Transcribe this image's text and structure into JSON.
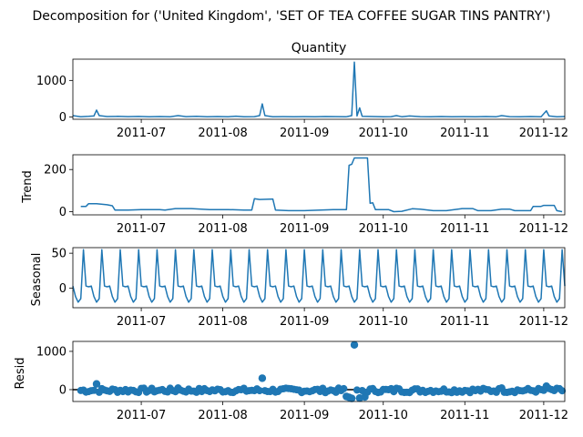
{
  "figure": {
    "suptitle": "Decomposition for ('United Kingdom', 'SET OF TEA COFFEE SUGAR TINS PANTRY')"
  },
  "colors": {
    "series": "#1f77b4",
    "axes": "#000000",
    "background": "#ffffff"
  },
  "chart_data": [
    {
      "type": "line",
      "title": "Quantity",
      "ylabel": "",
      "xlim": [
        "2011-06-05",
        "2011-12-09"
      ],
      "ylim": [
        -60,
        1580
      ],
      "yticks": [
        0,
        1000
      ],
      "xticks": [
        "2011-07",
        "2011-08",
        "2011-09",
        "2011-10",
        "2011-11",
        "2011-12"
      ],
      "series": [
        {
          "points": [
            [
              "2011-06-05",
              40
            ],
            [
              "2011-06-08",
              10
            ],
            [
              "2011-06-11",
              20
            ],
            [
              "2011-06-13",
              30
            ],
            [
              "2011-06-14",
              190
            ],
            [
              "2011-06-15",
              40
            ],
            [
              "2011-06-18",
              15
            ],
            [
              "2011-06-22",
              20
            ],
            [
              "2011-06-26",
              12
            ],
            [
              "2011-06-30",
              18
            ],
            [
              "2011-07-04",
              10
            ],
            [
              "2011-07-08",
              14
            ],
            [
              "2011-07-12",
              10
            ],
            [
              "2011-07-15",
              40
            ],
            [
              "2011-07-18",
              12
            ],
            [
              "2011-07-22",
              20
            ],
            [
              "2011-07-26",
              10
            ],
            [
              "2011-07-30",
              15
            ],
            [
              "2011-08-03",
              10
            ],
            [
              "2011-08-06",
              25
            ],
            [
              "2011-08-09",
              10
            ],
            [
              "2011-08-13",
              12
            ],
            [
              "2011-08-15",
              40
            ],
            [
              "2011-08-16",
              360
            ],
            [
              "2011-08-17",
              40
            ],
            [
              "2011-08-20",
              10
            ],
            [
              "2011-08-24",
              12
            ],
            [
              "2011-08-28",
              10
            ],
            [
              "2011-09-01",
              12
            ],
            [
              "2011-09-05",
              10
            ],
            [
              "2011-09-09",
              14
            ],
            [
              "2011-09-13",
              12
            ],
            [
              "2011-09-17",
              10
            ],
            [
              "2011-09-19",
              40
            ],
            [
              "2011-09-20",
              1500
            ],
            [
              "2011-09-21",
              30
            ],
            [
              "2011-09-22",
              250
            ],
            [
              "2011-09-23",
              20
            ],
            [
              "2011-09-27",
              15
            ],
            [
              "2011-10-01",
              10
            ],
            [
              "2011-10-04",
              12
            ],
            [
              "2011-10-06",
              40
            ],
            [
              "2011-10-08",
              10
            ],
            [
              "2011-10-11",
              30
            ],
            [
              "2011-10-15",
              12
            ],
            [
              "2011-10-19",
              10
            ],
            [
              "2011-10-23",
              14
            ],
            [
              "2011-10-27",
              10
            ],
            [
              "2011-11-01",
              12
            ],
            [
              "2011-11-05",
              10
            ],
            [
              "2011-11-09",
              14
            ],
            [
              "2011-11-13",
              10
            ],
            [
              "2011-11-15",
              40
            ],
            [
              "2011-11-18",
              12
            ],
            [
              "2011-11-22",
              10
            ],
            [
              "2011-11-26",
              14
            ],
            [
              "2011-11-30",
              10
            ],
            [
              "2011-12-02",
              170
            ],
            [
              "2011-12-03",
              30
            ],
            [
              "2011-12-06",
              10
            ],
            [
              "2011-12-09",
              15
            ]
          ]
        }
      ]
    },
    {
      "type": "line",
      "title": "",
      "ylabel": "Trend",
      "xlim": [
        "2011-06-05",
        "2011-12-09"
      ],
      "ylim": [
        -15,
        270
      ],
      "yticks": [
        0,
        200
      ],
      "xticks": [
        "2011-07",
        "2011-08",
        "2011-09",
        "2011-10",
        "2011-11",
        "2011-12"
      ],
      "series": [
        {
          "points": [
            [
              "2011-06-08",
              25
            ],
            [
              "2011-06-10",
              25
            ],
            [
              "2011-06-11",
              38
            ],
            [
              "2011-06-14",
              38
            ],
            [
              "2011-06-18",
              33
            ],
            [
              "2011-06-20",
              28
            ],
            [
              "2011-06-21",
              8
            ],
            [
              "2011-06-26",
              8
            ],
            [
              "2011-07-01",
              10
            ],
            [
              "2011-07-08",
              10
            ],
            [
              "2011-07-10",
              8
            ],
            [
              "2011-07-14",
              15
            ],
            [
              "2011-07-20",
              15
            ],
            [
              "2011-07-27",
              10
            ],
            [
              "2011-08-03",
              10
            ],
            [
              "2011-08-09",
              8
            ],
            [
              "2011-08-12",
              8
            ],
            [
              "2011-08-13",
              62
            ],
            [
              "2011-08-15",
              58
            ],
            [
              "2011-08-20",
              60
            ],
            [
              "2011-08-21",
              8
            ],
            [
              "2011-08-26",
              5
            ],
            [
              "2011-09-01",
              5
            ],
            [
              "2011-09-07",
              8
            ],
            [
              "2011-09-12",
              10
            ],
            [
              "2011-09-17",
              10
            ],
            [
              "2011-09-18",
              220
            ],
            [
              "2011-09-19",
              225
            ],
            [
              "2011-09-20",
              255
            ],
            [
              "2011-09-25",
              255
            ],
            [
              "2011-09-26",
              40
            ],
            [
              "2011-09-27",
              42
            ],
            [
              "2011-09-28",
              10
            ],
            [
              "2011-10-03",
              10
            ],
            [
              "2011-10-05",
              0
            ],
            [
              "2011-10-08",
              2
            ],
            [
              "2011-10-12",
              14
            ],
            [
              "2011-10-15",
              12
            ],
            [
              "2011-10-20",
              5
            ],
            [
              "2011-10-25",
              5
            ],
            [
              "2011-10-31",
              15
            ],
            [
              "2011-11-04",
              15
            ],
            [
              "2011-11-06",
              5
            ],
            [
              "2011-11-11",
              5
            ],
            [
              "2011-11-15",
              12
            ],
            [
              "2011-11-18",
              12
            ],
            [
              "2011-11-20",
              5
            ],
            [
              "2011-11-26",
              5
            ],
            [
              "2011-11-27",
              25
            ],
            [
              "2011-11-30",
              25
            ],
            [
              "2011-12-01",
              30
            ],
            [
              "2011-12-05",
              30
            ],
            [
              "2011-12-06",
              5
            ],
            [
              "2011-12-08",
              0
            ]
          ]
        }
      ]
    },
    {
      "type": "line",
      "title": "",
      "ylabel": "Seasonal",
      "xlim": [
        "2011-06-05",
        "2011-12-09"
      ],
      "ylim": [
        -28,
        58
      ],
      "yticks": [
        0,
        50
      ],
      "xticks": [
        "2011-07",
        "2011-08",
        "2011-09",
        "2011-10",
        "2011-11",
        "2011-12"
      ],
      "series": [
        {
          "period_days": 7,
          "pattern_start": "2011-06-05",
          "pattern": [
            3,
            -12,
            -20,
            -15,
            55,
            3,
            2
          ]
        }
      ]
    },
    {
      "type": "scatter",
      "title": "",
      "ylabel": "Resid",
      "xlim": [
        "2011-06-05",
        "2011-12-09"
      ],
      "ylim": [
        -310,
        1260
      ],
      "yticks": [
        0,
        1000
      ],
      "xticks": [
        "2011-07",
        "2011-08",
        "2011-09",
        "2011-10",
        "2011-11",
        "2011-12"
      ],
      "baseline": 0,
      "series": [
        {
          "outliers": [
            [
              "2011-06-14",
              150
            ],
            [
              "2011-08-16",
              300
            ],
            [
              "2011-09-20",
              1170
            ],
            [
              "2011-09-17",
              -180
            ],
            [
              "2011-09-18",
              -200
            ],
            [
              "2011-09-19",
              -230
            ],
            [
              "2011-09-22",
              -220
            ],
            [
              "2011-09-24",
              -190
            ],
            [
              "2011-07-15",
              40
            ],
            [
              "2011-10-06",
              30
            ],
            [
              "2011-11-15",
              40
            ],
            [
              "2011-12-02",
              90
            ]
          ],
          "noise_range": [
            -80,
            40
          ]
        }
      ]
    }
  ]
}
